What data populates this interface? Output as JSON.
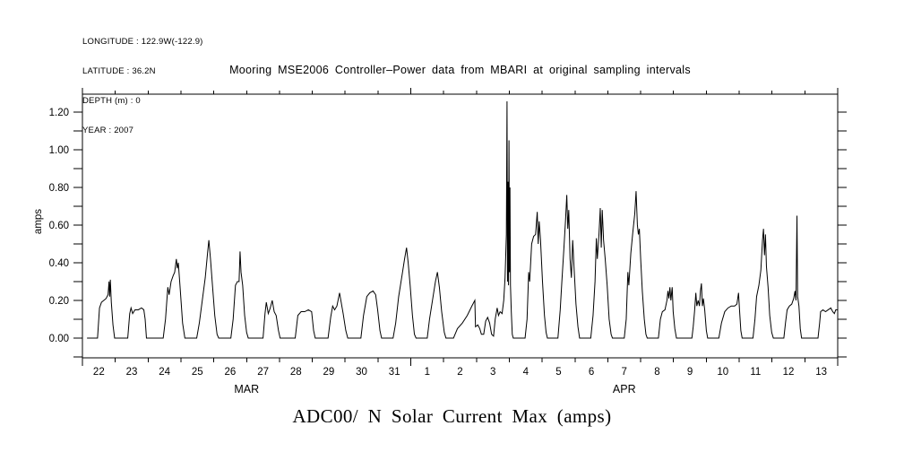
{
  "annotations": {
    "longitude": "LONGITUDE : 122.9W(-122.9)",
    "latitude": "LATITUDE : 36.2N",
    "depth": "DEPTH (m) : 0",
    "year": "YEAR : 2007"
  },
  "chart_data": {
    "type": "line",
    "title": "Mooring MSE2006 Controller–Power data from MBARI at original sampling intervals",
    "caption": "ADC00/ N Solar Current Max (amps)",
    "ylabel": "amps",
    "line_color": "#000000",
    "background": "#ffffff",
    "grid": false,
    "ylim": [
      -0.105,
      1.295
    ],
    "y_minor_step": 0.1,
    "y_tick_values": [
      0.0,
      0.2,
      0.4,
      0.6,
      0.8,
      1.0,
      1.2
    ],
    "y_tick_labels": [
      "0.00",
      "0.20",
      "0.40",
      "0.60",
      "0.80",
      "1.00",
      "1.20"
    ],
    "x_days": 23,
    "day_labels": [
      "22",
      "23",
      "24",
      "25",
      "26",
      "27",
      "28",
      "29",
      "30",
      "31",
      "1",
      "2",
      "3",
      "4",
      "5",
      "6",
      "7",
      "8",
      "9",
      "10",
      "11",
      "12",
      "13"
    ],
    "month_labels": [
      {
        "label": "MAR",
        "center_day": 5
      },
      {
        "label": "APR",
        "center_day": 16.5
      }
    ],
    "month_boundary_days": [
      0,
      10,
      23
    ],
    "series": [
      {
        "name": "ADC00/ N Solar Current Max",
        "units": "amps",
        "points": [
          [
            0.14,
            0
          ],
          [
            0.46,
            0
          ],
          [
            0.52,
            0.16
          ],
          [
            0.58,
            0.19
          ],
          [
            0.65,
            0.2
          ],
          [
            0.72,
            0.21
          ],
          [
            0.78,
            0.23
          ],
          [
            0.81,
            0.3
          ],
          [
            0.83,
            0.22
          ],
          [
            0.85,
            0.31
          ],
          [
            0.88,
            0.19
          ],
          [
            0.93,
            0.07
          ],
          [
            0.98,
            0
          ],
          [
            1.38,
            0
          ],
          [
            1.44,
            0.13
          ],
          [
            1.48,
            0.16
          ],
          [
            1.53,
            0.13
          ],
          [
            1.6,
            0.15
          ],
          [
            1.7,
            0.15
          ],
          [
            1.8,
            0.16
          ],
          [
            1.87,
            0.15
          ],
          [
            1.91,
            0.1
          ],
          [
            1.95,
            0
          ],
          [
            2.46,
            0
          ],
          [
            2.53,
            0.1
          ],
          [
            2.6,
            0.27
          ],
          [
            2.64,
            0.23
          ],
          [
            2.7,
            0.3
          ],
          [
            2.76,
            0.33
          ],
          [
            2.81,
            0.35
          ],
          [
            2.86,
            0.42
          ],
          [
            2.89,
            0.37
          ],
          [
            2.92,
            0.4
          ],
          [
            2.97,
            0.28
          ],
          [
            3.05,
            0.08
          ],
          [
            3.12,
            0
          ],
          [
            3.48,
            0
          ],
          [
            3.56,
            0.08
          ],
          [
            3.65,
            0.2
          ],
          [
            3.74,
            0.32
          ],
          [
            3.81,
            0.45
          ],
          [
            3.85,
            0.52
          ],
          [
            3.9,
            0.42
          ],
          [
            3.96,
            0.28
          ],
          [
            4.03,
            0.12
          ],
          [
            4.1,
            0.02
          ],
          [
            4.15,
            0
          ],
          [
            4.52,
            0
          ],
          [
            4.59,
            0.1
          ],
          [
            4.66,
            0.28
          ],
          [
            4.72,
            0.3
          ],
          [
            4.77,
            0.3
          ],
          [
            4.8,
            0.46
          ],
          [
            4.83,
            0.35
          ],
          [
            4.88,
            0.28
          ],
          [
            4.94,
            0.12
          ],
          [
            5.0,
            0.03
          ],
          [
            5.05,
            0
          ],
          [
            5.5,
            0
          ],
          [
            5.56,
            0.13
          ],
          [
            5.6,
            0.19
          ],
          [
            5.66,
            0.13
          ],
          [
            5.72,
            0.16
          ],
          [
            5.78,
            0.2
          ],
          [
            5.84,
            0.14
          ],
          [
            5.9,
            0.12
          ],
          [
            5.97,
            0.04
          ],
          [
            6.02,
            0
          ],
          [
            6.48,
            0
          ],
          [
            6.56,
            0.12
          ],
          [
            6.66,
            0.14
          ],
          [
            6.77,
            0.14
          ],
          [
            6.88,
            0.15
          ],
          [
            6.98,
            0.14
          ],
          [
            7.04,
            0.04
          ],
          [
            7.09,
            0
          ],
          [
            7.48,
            0
          ],
          [
            7.56,
            0.11
          ],
          [
            7.62,
            0.17
          ],
          [
            7.68,
            0.15
          ],
          [
            7.75,
            0.17
          ],
          [
            7.83,
            0.24
          ],
          [
            7.87,
            0.2
          ],
          [
            7.94,
            0.13
          ],
          [
            8.02,
            0.04
          ],
          [
            8.08,
            0
          ],
          [
            8.48,
            0
          ],
          [
            8.56,
            0.12
          ],
          [
            8.66,
            0.22
          ],
          [
            8.75,
            0.24
          ],
          [
            8.85,
            0.25
          ],
          [
            8.93,
            0.23
          ],
          [
            8.99,
            0.15
          ],
          [
            9.06,
            0.04
          ],
          [
            9.11,
            0
          ],
          [
            9.46,
            0
          ],
          [
            9.54,
            0.08
          ],
          [
            9.63,
            0.22
          ],
          [
            9.73,
            0.33
          ],
          [
            9.81,
            0.42
          ],
          [
            9.87,
            0.48
          ],
          [
            9.92,
            0.4
          ],
          [
            9.98,
            0.28
          ],
          [
            10.05,
            0.12
          ],
          [
            10.11,
            0.02
          ],
          [
            10.16,
            0
          ],
          [
            10.5,
            0
          ],
          [
            10.57,
            0.1
          ],
          [
            10.66,
            0.2
          ],
          [
            10.75,
            0.3
          ],
          [
            10.81,
            0.35
          ],
          [
            10.87,
            0.27
          ],
          [
            10.94,
            0.14
          ],
          [
            11.02,
            0.03
          ],
          [
            11.07,
            0
          ],
          [
            11.3,
            0
          ],
          [
            11.42,
            0.05
          ],
          [
            11.57,
            0.08
          ],
          [
            11.72,
            0.12
          ],
          [
            11.86,
            0.17
          ],
          [
            11.95,
            0.2
          ],
          [
            11.97,
            0.06
          ],
          [
            12.04,
            0.07
          ],
          [
            12.1,
            0.05
          ],
          [
            12.15,
            0.02
          ],
          [
            12.22,
            0.02
          ],
          [
            12.28,
            0.09
          ],
          [
            12.34,
            0.11
          ],
          [
            12.4,
            0.08
          ],
          [
            12.46,
            0.02
          ],
          [
            12.52,
            0.01
          ],
          [
            12.57,
            0.1
          ],
          [
            12.63,
            0.16
          ],
          [
            12.67,
            0.12
          ],
          [
            12.72,
            0.14
          ],
          [
            12.78,
            0.13
          ],
          [
            12.83,
            0.2
          ],
          [
            12.87,
            0.32
          ],
          [
            12.91,
            0.55
          ],
          [
            12.93,
            1.257
          ],
          [
            12.945,
            0.3
          ],
          [
            12.96,
            0.83
          ],
          [
            12.975,
            0.28
          ],
          [
            12.99,
            1.05
          ],
          [
            13.005,
            0.35
          ],
          [
            13.02,
            0.8
          ],
          [
            13.035,
            0.28
          ],
          [
            13.06,
            0.14
          ],
          [
            13.09,
            0.02
          ],
          [
            13.12,
            0
          ],
          [
            13.48,
            0
          ],
          [
            13.54,
            0.1
          ],
          [
            13.59,
            0.35
          ],
          [
            13.62,
            0.3
          ],
          [
            13.68,
            0.5
          ],
          [
            13.74,
            0.54
          ],
          [
            13.8,
            0.55
          ],
          [
            13.85,
            0.67
          ],
          [
            13.88,
            0.5
          ],
          [
            13.91,
            0.62
          ],
          [
            13.95,
            0.52
          ],
          [
            14.01,
            0.3
          ],
          [
            14.07,
            0.12
          ],
          [
            14.12,
            0.03
          ],
          [
            14.16,
            0
          ],
          [
            14.48,
            0
          ],
          [
            14.55,
            0.15
          ],
          [
            14.6,
            0.3
          ],
          [
            14.66,
            0.47
          ],
          [
            14.71,
            0.62
          ],
          [
            14.75,
            0.76
          ],
          [
            14.78,
            0.58
          ],
          [
            14.81,
            0.68
          ],
          [
            14.85,
            0.42
          ],
          [
            14.89,
            0.32
          ],
          [
            14.93,
            0.52
          ],
          [
            14.97,
            0.38
          ],
          [
            15.03,
            0.18
          ],
          [
            15.09,
            0.06
          ],
          [
            15.14,
            0
          ],
          [
            15.48,
            0
          ],
          [
            15.55,
            0.12
          ],
          [
            15.61,
            0.3
          ],
          [
            15.65,
            0.53
          ],
          [
            15.68,
            0.42
          ],
          [
            15.73,
            0.55
          ],
          [
            15.77,
            0.69
          ],
          [
            15.8,
            0.48
          ],
          [
            15.83,
            0.68
          ],
          [
            15.87,
            0.52
          ],
          [
            15.92,
            0.42
          ],
          [
            15.98,
            0.28
          ],
          [
            16.04,
            0.1
          ],
          [
            16.1,
            0.02
          ],
          [
            16.14,
            0
          ],
          [
            16.5,
            0
          ],
          [
            16.56,
            0.1
          ],
          [
            16.61,
            0.35
          ],
          [
            16.64,
            0.28
          ],
          [
            16.7,
            0.45
          ],
          [
            16.76,
            0.56
          ],
          [
            16.82,
            0.66
          ],
          [
            16.86,
            0.78
          ],
          [
            16.9,
            0.6
          ],
          [
            16.93,
            0.55
          ],
          [
            16.96,
            0.58
          ],
          [
            17.0,
            0.42
          ],
          [
            17.05,
            0.25
          ],
          [
            17.11,
            0.1
          ],
          [
            17.16,
            0.02
          ],
          [
            17.2,
            0
          ],
          [
            17.54,
            0
          ],
          [
            17.6,
            0.1
          ],
          [
            17.66,
            0.14
          ],
          [
            17.74,
            0.15
          ],
          [
            17.8,
            0.2
          ],
          [
            17.83,
            0.25
          ],
          [
            17.86,
            0.21
          ],
          [
            17.89,
            0.27
          ],
          [
            17.92,
            0.2
          ],
          [
            17.96,
            0.27
          ],
          [
            17.99,
            0.14
          ],
          [
            18.04,
            0.05
          ],
          [
            18.09,
            0
          ],
          [
            18.56,
            0
          ],
          [
            18.6,
            0.06
          ],
          [
            18.64,
            0.14
          ],
          [
            18.68,
            0.24
          ],
          [
            18.71,
            0.17
          ],
          [
            18.75,
            0.2
          ],
          [
            18.79,
            0.17
          ],
          [
            18.82,
            0.25
          ],
          [
            18.85,
            0.29
          ],
          [
            18.88,
            0.17
          ],
          [
            18.91,
            0.21
          ],
          [
            18.95,
            0.15
          ],
          [
            19.0,
            0.04
          ],
          [
            19.04,
            0
          ],
          [
            19.38,
            0
          ],
          [
            19.46,
            0.08
          ],
          [
            19.56,
            0.14
          ],
          [
            19.66,
            0.16
          ],
          [
            19.76,
            0.17
          ],
          [
            19.86,
            0.17
          ],
          [
            19.93,
            0.18
          ],
          [
            19.98,
            0.24
          ],
          [
            20.01,
            0.15
          ],
          [
            20.05,
            0.04
          ],
          [
            20.09,
            0
          ],
          [
            20.42,
            0
          ],
          [
            20.48,
            0.1
          ],
          [
            20.53,
            0.22
          ],
          [
            20.6,
            0.28
          ],
          [
            20.66,
            0.36
          ],
          [
            20.71,
            0.52
          ],
          [
            20.74,
            0.58
          ],
          [
            20.77,
            0.44
          ],
          [
            20.8,
            0.55
          ],
          [
            20.83,
            0.38
          ],
          [
            20.88,
            0.27
          ],
          [
            20.93,
            0.12
          ],
          [
            20.99,
            0.03
          ],
          [
            21.04,
            0
          ],
          [
            21.36,
            0
          ],
          [
            21.41,
            0.08
          ],
          [
            21.46,
            0.15
          ],
          [
            21.53,
            0.17
          ],
          [
            21.6,
            0.18
          ],
          [
            21.66,
            0.21
          ],
          [
            21.7,
            0.25
          ],
          [
            21.73,
            0.2
          ],
          [
            21.76,
            0.65
          ],
          [
            21.78,
            0.22
          ],
          [
            21.82,
            0.17
          ],
          [
            21.86,
            0.05
          ],
          [
            21.9,
            0
          ],
          [
            22.4,
            0
          ],
          [
            22.45,
            0.08
          ],
          [
            22.48,
            0.14
          ],
          [
            22.55,
            0.15
          ],
          [
            22.63,
            0.14
          ],
          [
            22.71,
            0.15
          ],
          [
            22.79,
            0.16
          ],
          [
            22.85,
            0.14
          ],
          [
            22.9,
            0.13
          ],
          [
            22.94,
            0.15
          ],
          [
            22.99,
            0.15
          ]
        ]
      }
    ]
  }
}
